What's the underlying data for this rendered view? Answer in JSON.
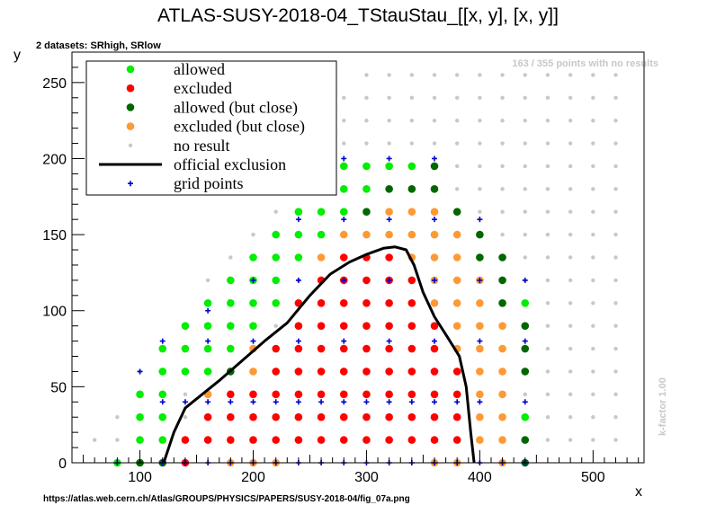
{
  "title": "ATLAS-SUSY-2018-04_TStauStau_[[x, y], [x, y]]",
  "subtitle": "2 datasets: SRhigh, SRlow",
  "no_result_note": "163 / 355 points with no results",
  "kfactor_note": "k-factor 1.00",
  "source_url": "https://atlas.web.cern.ch/Atlas/GROUPS/PHYSICS/PAPERS/SUSY-2018-04/fig_07a.png",
  "colors": {
    "allowed": "#00ee00",
    "excluded": "#ff0000",
    "allowed_close": "#006600",
    "excluded_close": "#ff9933",
    "no_result": "#c8c8c8",
    "official_exclusion": "#000000",
    "grid_points": "#0000cc"
  },
  "chart_data": {
    "type": "scatter",
    "xlabel": "x",
    "ylabel": "y",
    "xlim": [
      40,
      545
    ],
    "ylim": [
      0,
      270
    ],
    "x_ticks": [
      100,
      200,
      300,
      400,
      500
    ],
    "y_ticks": [
      0,
      50,
      100,
      150,
      200,
      250
    ],
    "legend_position": "top-left",
    "legend": [
      {
        "key": "allowed",
        "label": "allowed",
        "marker": "dot"
      },
      {
        "key": "excluded",
        "label": "excluded",
        "marker": "dot"
      },
      {
        "key": "allowed_close",
        "label": "allowed (but close)",
        "marker": "dot"
      },
      {
        "key": "excluded_close",
        "label": "excluded (but close)",
        "marker": "dot"
      },
      {
        "key": "no_result",
        "label": "no result",
        "marker": "small-dot"
      },
      {
        "key": "official_exclusion",
        "label": "official exclusion",
        "marker": "line"
      },
      {
        "key": "grid_points",
        "label": "grid points",
        "marker": "cross"
      }
    ],
    "no_result_grid": {
      "x_start": 60,
      "x_end": 520,
      "x_step": 20,
      "y_start": 15,
      "y_step": 15,
      "diag_offset": 40
    },
    "series": [
      {
        "key": "allowed",
        "points": [
          [
            80,
            0
          ],
          [
            100,
            15
          ],
          [
            100,
            30
          ],
          [
            100,
            45
          ],
          [
            120,
            15
          ],
          [
            120,
            30
          ],
          [
            120,
            45
          ],
          [
            120,
            60
          ],
          [
            120,
            75
          ],
          [
            140,
            60
          ],
          [
            140,
            75
          ],
          [
            140,
            90
          ],
          [
            160,
            60
          ],
          [
            160,
            75
          ],
          [
            160,
            90
          ],
          [
            160,
            105
          ],
          [
            180,
            75
          ],
          [
            180,
            90
          ],
          [
            180,
            105
          ],
          [
            180,
            120
          ],
          [
            200,
            90
          ],
          [
            200,
            105
          ],
          [
            200,
            120
          ],
          [
            200,
            135
          ],
          [
            220,
            105
          ],
          [
            220,
            120
          ],
          [
            220,
            135
          ],
          [
            220,
            150
          ],
          [
            240,
            135
          ],
          [
            240,
            150
          ],
          [
            240,
            165
          ],
          [
            260,
            150
          ],
          [
            260,
            165
          ],
          [
            280,
            165
          ],
          [
            280,
            180
          ],
          [
            280,
            195
          ],
          [
            300,
            180
          ],
          [
            300,
            195
          ],
          [
            320,
            195
          ],
          [
            340,
            195
          ],
          [
            440,
            105
          ],
          [
            440,
            30
          ]
        ]
      },
      {
        "key": "excluded",
        "points": [
          [
            140,
            0
          ],
          [
            140,
            15
          ],
          [
            160,
            15
          ],
          [
            160,
            30
          ],
          [
            180,
            15
          ],
          [
            180,
            30
          ],
          [
            180,
            45
          ],
          [
            200,
            15
          ],
          [
            200,
            30
          ],
          [
            200,
            45
          ],
          [
            220,
            15
          ],
          [
            220,
            30
          ],
          [
            220,
            45
          ],
          [
            220,
            60
          ],
          [
            220,
            75
          ],
          [
            240,
            15
          ],
          [
            240,
            30
          ],
          [
            240,
            45
          ],
          [
            240,
            60
          ],
          [
            240,
            75
          ],
          [
            240,
            90
          ],
          [
            240,
            105
          ],
          [
            260,
            15
          ],
          [
            260,
            30
          ],
          [
            260,
            45
          ],
          [
            260,
            60
          ],
          [
            260,
            75
          ],
          [
            260,
            90
          ],
          [
            260,
            105
          ],
          [
            260,
            120
          ],
          [
            280,
            15
          ],
          [
            280,
            30
          ],
          [
            280,
            45
          ],
          [
            280,
            60
          ],
          [
            280,
            75
          ],
          [
            280,
            90
          ],
          [
            280,
            105
          ],
          [
            280,
            120
          ],
          [
            280,
            135
          ],
          [
            300,
            15
          ],
          [
            300,
            30
          ],
          [
            300,
            45
          ],
          [
            300,
            60
          ],
          [
            300,
            75
          ],
          [
            300,
            90
          ],
          [
            300,
            105
          ],
          [
            300,
            120
          ],
          [
            300,
            135
          ],
          [
            320,
            15
          ],
          [
            320,
            30
          ],
          [
            320,
            45
          ],
          [
            320,
            60
          ],
          [
            320,
            75
          ],
          [
            320,
            90
          ],
          [
            320,
            105
          ],
          [
            320,
            120
          ],
          [
            320,
            135
          ],
          [
            340,
            15
          ],
          [
            340,
            30
          ],
          [
            340,
            45
          ],
          [
            340,
            60
          ],
          [
            340,
            75
          ],
          [
            340,
            90
          ],
          [
            340,
            105
          ],
          [
            340,
            120
          ],
          [
            360,
            15
          ],
          [
            360,
            30
          ],
          [
            360,
            45
          ],
          [
            360,
            60
          ],
          [
            360,
            75
          ],
          [
            360,
            90
          ],
          [
            380,
            15
          ],
          [
            380,
            30
          ],
          [
            380,
            45
          ],
          [
            380,
            60
          ]
        ]
      },
      {
        "key": "allowed_close",
        "points": [
          [
            180,
            60
          ],
          [
            300,
            165
          ],
          [
            320,
            180
          ],
          [
            340,
            180
          ],
          [
            360,
            180
          ],
          [
            360,
            195
          ],
          [
            380,
            165
          ],
          [
            400,
            150
          ],
          [
            400,
            135
          ],
          [
            420,
            135
          ],
          [
            420,
            120
          ],
          [
            420,
            105
          ],
          [
            440,
            90
          ],
          [
            440,
            75
          ],
          [
            440,
            60
          ],
          [
            440,
            15
          ],
          [
            440,
            0
          ],
          [
            120,
            0
          ],
          [
            100,
            0
          ]
        ]
      },
      {
        "key": "excluded_close",
        "points": [
          [
            160,
            45
          ],
          [
            180,
            0
          ],
          [
            200,
            60
          ],
          [
            200,
            75
          ],
          [
            220,
            0
          ],
          [
            260,
            135
          ],
          [
            280,
            150
          ],
          [
            300,
            150
          ],
          [
            320,
            165
          ],
          [
            320,
            150
          ],
          [
            340,
            165
          ],
          [
            340,
            150
          ],
          [
            340,
            135
          ],
          [
            360,
            165
          ],
          [
            360,
            150
          ],
          [
            360,
            135
          ],
          [
            360,
            120
          ],
          [
            360,
            105
          ],
          [
            380,
            150
          ],
          [
            380,
            135
          ],
          [
            380,
            120
          ],
          [
            380,
            105
          ],
          [
            380,
            90
          ],
          [
            380,
            75
          ],
          [
            400,
            120
          ],
          [
            400,
            105
          ],
          [
            400,
            90
          ],
          [
            400,
            75
          ],
          [
            400,
            60
          ],
          [
            400,
            45
          ],
          [
            400,
            30
          ],
          [
            400,
            15
          ],
          [
            420,
            90
          ],
          [
            420,
            75
          ],
          [
            420,
            60
          ],
          [
            420,
            45
          ],
          [
            420,
            30
          ],
          [
            420,
            15
          ],
          [
            420,
            0
          ],
          [
            360,
            0
          ],
          [
            380,
            0
          ],
          [
            200,
            0
          ]
        ]
      },
      {
        "key": "official_exclusion",
        "points": [
          [
            121,
            0
          ],
          [
            130,
            20
          ],
          [
            140,
            36
          ],
          [
            155,
            45
          ],
          [
            170,
            54
          ],
          [
            190,
            67
          ],
          [
            210,
            80
          ],
          [
            230,
            92
          ],
          [
            250,
            110
          ],
          [
            268,
            124
          ],
          [
            285,
            132
          ],
          [
            300,
            137
          ],
          [
            315,
            141
          ],
          [
            325,
            142
          ],
          [
            335,
            140
          ],
          [
            342,
            130
          ],
          [
            350,
            112
          ],
          [
            360,
            96
          ],
          [
            372,
            82
          ],
          [
            382,
            70
          ],
          [
            388,
            50
          ],
          [
            392,
            20
          ],
          [
            395,
            0
          ]
        ]
      },
      {
        "key": "grid_points",
        "points": [
          [
            100,
            60
          ],
          [
            120,
            80
          ],
          [
            120,
            40
          ],
          [
            140,
            40
          ],
          [
            160,
            100
          ],
          [
            160,
            80
          ],
          [
            160,
            40
          ],
          [
            180,
            40
          ],
          [
            200,
            120
          ],
          [
            200,
            80
          ],
          [
            200,
            40
          ],
          [
            220,
            40
          ],
          [
            240,
            160
          ],
          [
            240,
            120
          ],
          [
            240,
            80
          ],
          [
            240,
            40
          ],
          [
            260,
            40
          ],
          [
            280,
            200
          ],
          [
            280,
            160
          ],
          [
            280,
            120
          ],
          [
            280,
            80
          ],
          [
            280,
            40
          ],
          [
            300,
            40
          ],
          [
            320,
            200
          ],
          [
            320,
            160
          ],
          [
            320,
            120
          ],
          [
            320,
            80
          ],
          [
            320,
            40
          ],
          [
            340,
            40
          ],
          [
            360,
            200
          ],
          [
            360,
            160
          ],
          [
            360,
            120
          ],
          [
            360,
            80
          ],
          [
            360,
            40
          ],
          [
            380,
            40
          ],
          [
            400,
            160
          ],
          [
            400,
            120
          ],
          [
            400,
            80
          ],
          [
            400,
            40
          ],
          [
            440,
            120
          ],
          [
            440,
            80
          ],
          [
            440,
            40
          ],
          [
            80,
            0
          ],
          [
            120,
            0
          ],
          [
            140,
            0
          ],
          [
            160,
            0
          ],
          [
            180,
            0
          ],
          [
            200,
            0
          ],
          [
            220,
            0
          ],
          [
            240,
            0
          ],
          [
            260,
            0
          ],
          [
            280,
            0
          ],
          [
            300,
            0
          ],
          [
            320,
            0
          ],
          [
            340,
            0
          ],
          [
            360,
            0
          ],
          [
            380,
            0
          ],
          [
            400,
            0
          ],
          [
            420,
            0
          ],
          [
            440,
            0
          ]
        ]
      }
    ]
  }
}
